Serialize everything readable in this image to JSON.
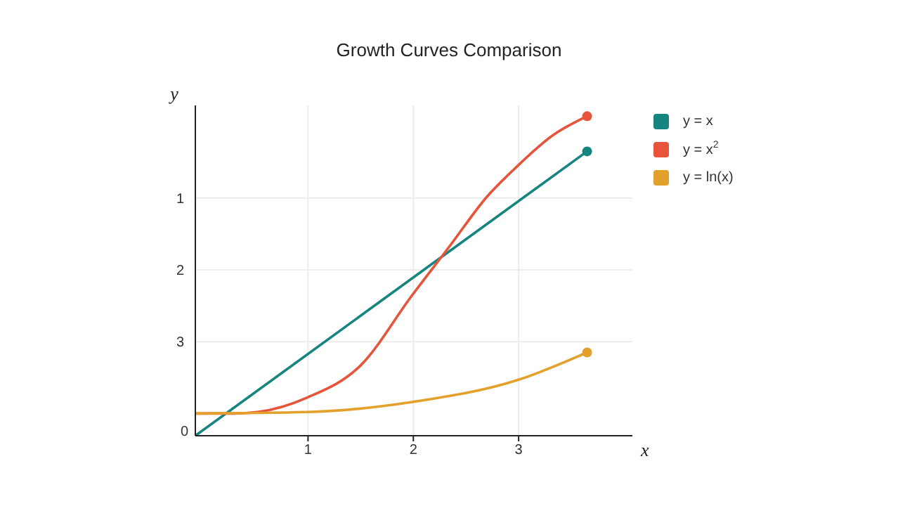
{
  "chart_data": {
    "type": "line",
    "title": "Growth Curves Comparison",
    "xlabel": "x",
    "ylabel": "y",
    "annotations": [
      "0"
    ],
    "xlim": [
      -0.07,
      4.08
    ],
    "ylim": [
      4.31,
      -0.29
    ],
    "xticks": [
      1,
      2,
      3
    ],
    "yticks": [
      3,
      2,
      1
    ],
    "grid": true,
    "legend": "top right",
    "series": [
      {
        "name": "y = x",
        "color": "#16847f",
        "x": [
          -0.07,
          3.65
        ],
        "values": [
          4.31,
          0.35
        ]
      },
      {
        "name": "y = x$^{2}$",
        "color": "#e8543a",
        "x": [
          -0.07,
          0.3,
          0.52,
          0.99,
          1.5,
          1.99,
          2.35,
          2.7,
          2.97,
          3.32,
          3.65
        ],
        "values": [
          4.0,
          4.0,
          3.98,
          3.78,
          3.33,
          2.35,
          1.66,
          0.98,
          0.58,
          0.13,
          -0.14
        ]
      },
      {
        "name": "y = ln(x)",
        "color": "#e3a02a",
        "x": [
          -0.07,
          0.99,
          1.99,
          3.0,
          3.65
        ],
        "values": [
          4.0,
          3.98,
          3.84,
          3.53,
          3.15
        ]
      },
      {
        "type": "scatter",
        "marker": "circle",
        "color": "#16847f",
        "x": [
          3.65
        ],
        "values": [
          0.35
        ]
      },
      {
        "type": "scatter",
        "marker": "circle",
        "color": "#e8543a",
        "x": [
          3.65
        ],
        "values": [
          -0.14
        ]
      },
      {
        "type": "scatter",
        "marker": "circle",
        "color": "#e3a02a",
        "x": [
          3.65
        ],
        "values": [
          3.15
        ]
      }
    ]
  }
}
